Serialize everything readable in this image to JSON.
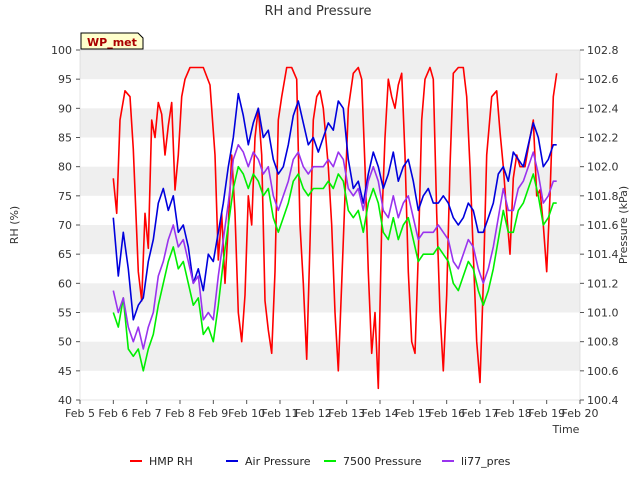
{
  "chart_data": {
    "type": "line",
    "title": "RH and Pressure",
    "badge": "WP_met",
    "xlabel": "Time",
    "ylabel": "RH (%)",
    "y2label": "Pressure (kPa)",
    "x_ticks": [
      5,
      6,
      7,
      8,
      9,
      10,
      11,
      12,
      13,
      14,
      15,
      16,
      17,
      18,
      19,
      20
    ],
    "x_tick_labels": [
      "Feb 5",
      "Feb 6",
      "Feb 7",
      "Feb 8",
      "Feb 9",
      "Feb 10",
      "Feb 11",
      "Feb 12",
      "Feb 13",
      "Feb 14",
      "Feb 15",
      "Feb 16",
      "Feb 17",
      "Feb 18",
      "Feb 19",
      "Feb 20"
    ],
    "xlim": [
      5,
      20
    ],
    "ylim": [
      40,
      100
    ],
    "y_ticks": [
      40,
      45,
      50,
      55,
      60,
      65,
      70,
      75,
      80,
      85,
      90,
      95,
      100
    ],
    "y2lim": [
      100.4,
      102.8
    ],
    "y2_ticks": [
      100.4,
      100.6,
      100.8,
      101.0,
      101.2,
      101.4,
      101.6,
      101.8,
      102.0,
      102.2,
      102.4,
      102.6,
      102.8
    ],
    "y2_tick_labels": [
      "100.4",
      "100.6",
      "100.8",
      "101.0",
      "101.2",
      "101.4",
      "101.6",
      "101.8",
      "102.0",
      "102.2",
      "102.4",
      "102.6",
      "102.8"
    ],
    "series": [
      {
        "name": "HMP RH",
        "color": "#ff0000",
        "axis": "left",
        "x": [
          6.0,
          6.1,
          6.2,
          6.35,
          6.5,
          6.6,
          6.75,
          6.85,
          6.95,
          7.05,
          7.15,
          7.25,
          7.35,
          7.45,
          7.55,
          7.65,
          7.75,
          7.85,
          7.95,
          8.05,
          8.15,
          8.3,
          8.5,
          8.7,
          8.9,
          9.05,
          9.15,
          9.25,
          9.35,
          9.45,
          9.55,
          9.65,
          9.75,
          9.85,
          9.95,
          10.05,
          10.15,
          10.25,
          10.35,
          10.45,
          10.55,
          10.65,
          10.75,
          10.85,
          10.95,
          11.05,
          11.2,
          11.35,
          11.5,
          11.6,
          11.7,
          11.8,
          11.9,
          12.0,
          12.1,
          12.2,
          12.3,
          12.45,
          12.55,
          12.65,
          12.75,
          12.85,
          12.95,
          13.05,
          13.2,
          13.35,
          13.45,
          13.55,
          13.65,
          13.75,
          13.85,
          13.95,
          14.05,
          14.15,
          14.25,
          14.35,
          14.45,
          14.55,
          14.65,
          14.75,
          14.85,
          14.95,
          15.05,
          15.15,
          15.25,
          15.35,
          15.5,
          15.6,
          15.7,
          15.8,
          15.9,
          16.0,
          16.1,
          16.2,
          16.35,
          16.5,
          16.6,
          16.7,
          16.8,
          16.9,
          17.0,
          17.1,
          17.2,
          17.35,
          17.5,
          17.6,
          17.7,
          17.8,
          17.9,
          18.0,
          18.1,
          18.2,
          18.35,
          18.5,
          18.6,
          18.7,
          18.8,
          18.9,
          19.0,
          19.1,
          19.2,
          19.3
        ],
        "y": [
          78,
          72,
          88,
          93,
          92,
          83,
          62,
          57,
          72,
          66,
          88,
          85,
          91,
          89,
          82,
          87,
          91,
          76,
          82,
          92,
          95,
          97,
          97,
          97,
          94,
          82,
          64,
          72,
          60,
          70,
          82,
          72,
          55,
          50,
          58,
          75,
          70,
          85,
          90,
          82,
          57,
          52,
          48,
          62,
          88,
          92,
          97,
          97,
          95,
          70,
          60,
          47,
          67,
          88,
          92,
          93,
          90,
          80,
          70,
          55,
          45,
          60,
          75,
          90,
          96,
          97,
          95,
          80,
          62,
          48,
          55,
          42,
          70,
          85,
          95,
          92,
          90,
          94,
          96,
          82,
          62,
          50,
          48,
          65,
          88,
          95,
          97,
          95,
          72,
          55,
          45,
          58,
          80,
          96,
          97,
          97,
          92,
          80,
          65,
          50,
          43,
          60,
          82,
          92,
          93,
          86,
          80,
          72,
          65,
          78,
          82,
          80,
          80,
          85,
          88,
          75,
          76,
          70,
          62,
          75,
          92,
          96
        ]
      },
      {
        "name": "Air Pressure",
        "color": "#0000dd",
        "axis": "right",
        "x": [
          6.0,
          6.15,
          6.3,
          6.45,
          6.6,
          6.75,
          6.9,
          7.05,
          7.2,
          7.35,
          7.5,
          7.65,
          7.8,
          7.95,
          8.1,
          8.25,
          8.4,
          8.55,
          8.7,
          8.85,
          9.0,
          9.15,
          9.3,
          9.45,
          9.6,
          9.75,
          9.9,
          10.05,
          10.2,
          10.35,
          10.5,
          10.65,
          10.8,
          10.95,
          11.1,
          11.25,
          11.4,
          11.55,
          11.7,
          11.85,
          12.0,
          12.15,
          12.3,
          12.45,
          12.6,
          12.75,
          12.9,
          13.05,
          13.2,
          13.35,
          13.5,
          13.65,
          13.8,
          13.95,
          14.1,
          14.25,
          14.4,
          14.55,
          14.7,
          14.85,
          15.0,
          15.15,
          15.3,
          15.45,
          15.6,
          15.75,
          15.9,
          16.05,
          16.2,
          16.35,
          16.5,
          16.65,
          16.8,
          16.95,
          17.1,
          17.25,
          17.4,
          17.55,
          17.7,
          17.85,
          18.0,
          18.15,
          18.3,
          18.45,
          18.6,
          18.75,
          18.9,
          19.05,
          19.2,
          19.3
        ],
        "y": [
          101.65,
          101.25,
          101.55,
          101.3,
          100.95,
          101.05,
          101.1,
          101.35,
          101.5,
          101.75,
          101.85,
          101.7,
          101.8,
          101.55,
          101.6,
          101.45,
          101.2,
          101.3,
          101.15,
          101.4,
          101.35,
          101.55,
          101.75,
          102.0,
          102.2,
          102.5,
          102.35,
          102.15,
          102.3,
          102.4,
          102.2,
          102.25,
          102.05,
          101.95,
          102.0,
          102.15,
          102.35,
          102.45,
          102.3,
          102.15,
          102.2,
          102.1,
          102.2,
          102.3,
          102.25,
          102.45,
          102.4,
          102.05,
          101.85,
          101.9,
          101.75,
          101.95,
          102.1,
          102.0,
          101.85,
          101.95,
          102.1,
          101.9,
          102.0,
          102.05,
          101.9,
          101.7,
          101.8,
          101.85,
          101.75,
          101.75,
          101.8,
          101.75,
          101.65,
          101.6,
          101.65,
          101.75,
          101.7,
          101.55,
          101.55,
          101.65,
          101.75,
          101.95,
          102.0,
          101.9,
          102.1,
          102.05,
          102.0,
          102.15,
          102.3,
          102.2,
          102.0,
          102.05,
          102.15,
          102.15
        ]
      },
      {
        "name": "7500 Pressure",
        "color": "#00ee00",
        "axis": "right",
        "x": [
          6.0,
          6.15,
          6.3,
          6.45,
          6.6,
          6.75,
          6.9,
          7.05,
          7.2,
          7.35,
          7.5,
          7.65,
          7.8,
          7.95,
          8.1,
          8.25,
          8.4,
          8.55,
          8.7,
          8.85,
          9.0,
          9.15,
          9.3,
          9.45,
          9.6,
          9.75,
          9.9,
          10.05,
          10.2,
          10.35,
          10.5,
          10.65,
          10.8,
          10.95,
          11.1,
          11.25,
          11.4,
          11.55,
          11.7,
          11.85,
          12.0,
          12.15,
          12.3,
          12.45,
          12.6,
          12.75,
          12.9,
          13.05,
          13.2,
          13.35,
          13.5,
          13.65,
          13.8,
          13.95,
          14.1,
          14.25,
          14.4,
          14.55,
          14.7,
          14.85,
          15.0,
          15.15,
          15.3,
          15.45,
          15.6,
          15.75,
          15.9,
          16.05,
          16.2,
          16.35,
          16.5,
          16.65,
          16.8,
          16.95,
          17.1,
          17.25,
          17.4,
          17.55,
          17.7,
          17.85,
          18.0,
          18.15,
          18.3,
          18.45,
          18.6,
          18.75,
          18.9,
          19.05,
          19.2,
          19.3
        ],
        "y": [
          101.0,
          100.9,
          101.1,
          100.75,
          100.7,
          100.75,
          100.6,
          100.75,
          100.85,
          101.05,
          101.2,
          101.35,
          101.45,
          101.3,
          101.35,
          101.2,
          101.05,
          101.1,
          100.85,
          100.9,
          100.8,
          101.05,
          101.35,
          101.6,
          101.85,
          102.0,
          101.95,
          101.85,
          101.95,
          101.9,
          101.8,
          101.85,
          101.65,
          101.55,
          101.65,
          101.75,
          101.9,
          101.95,
          101.85,
          101.8,
          101.85,
          101.85,
          101.85,
          101.9,
          101.85,
          101.95,
          101.9,
          101.7,
          101.65,
          101.7,
          101.55,
          101.75,
          101.85,
          101.75,
          101.55,
          101.5,
          101.65,
          101.5,
          101.6,
          101.65,
          101.5,
          101.35,
          101.4,
          101.4,
          101.4,
          101.45,
          101.4,
          101.35,
          101.2,
          101.15,
          101.25,
          101.35,
          101.3,
          101.15,
          101.05,
          101.15,
          101.3,
          101.5,
          101.7,
          101.55,
          101.55,
          101.7,
          101.75,
          101.85,
          101.95,
          101.8,
          101.6,
          101.65,
          101.75,
          101.75
        ]
      },
      {
        "name": "li77_pres",
        "color": "#9933ee",
        "axis": "right",
        "x": [
          6.0,
          6.15,
          6.3,
          6.45,
          6.6,
          6.75,
          6.9,
          7.05,
          7.2,
          7.35,
          7.5,
          7.65,
          7.8,
          7.95,
          8.1,
          8.25,
          8.4,
          8.55,
          8.7,
          8.85,
          9.0,
          9.15,
          9.3,
          9.45,
          9.6,
          9.75,
          9.9,
          10.05,
          10.2,
          10.35,
          10.5,
          10.65,
          10.8,
          10.95,
          11.1,
          11.25,
          11.4,
          11.55,
          11.7,
          11.85,
          12.0,
          12.15,
          12.3,
          12.45,
          12.6,
          12.75,
          12.9,
          13.05,
          13.2,
          13.35,
          13.5,
          13.65,
          13.8,
          13.95,
          14.1,
          14.25,
          14.4,
          14.55,
          14.7,
          14.85,
          15.0,
          15.15,
          15.3,
          15.45,
          15.6,
          15.75,
          15.9,
          16.05,
          16.2,
          16.35,
          16.5,
          16.65,
          16.8,
          16.95,
          17.1,
          17.25,
          17.4,
          17.55,
          17.7,
          17.85,
          18.0,
          18.15,
          18.3,
          18.45,
          18.6,
          18.75,
          18.9,
          19.05,
          19.2,
          19.3
        ],
        "y": [
          101.15,
          101.0,
          101.1,
          100.9,
          100.8,
          100.9,
          100.75,
          100.9,
          101.0,
          101.25,
          101.35,
          101.5,
          101.6,
          101.45,
          101.5,
          101.35,
          101.2,
          101.25,
          100.95,
          101.0,
          100.95,
          101.25,
          101.5,
          101.75,
          102.05,
          102.15,
          102.1,
          102.0,
          102.1,
          102.05,
          101.95,
          102.0,
          101.8,
          101.7,
          101.8,
          101.9,
          102.05,
          102.1,
          102.0,
          101.95,
          102.0,
          102.0,
          102.0,
          102.05,
          102.0,
          102.1,
          102.05,
          101.85,
          101.8,
          101.85,
          101.7,
          101.9,
          102.0,
          101.9,
          101.7,
          101.65,
          101.8,
          101.65,
          101.75,
          101.8,
          101.65,
          101.5,
          101.55,
          101.55,
          101.55,
          101.6,
          101.55,
          101.5,
          101.35,
          101.3,
          101.4,
          101.5,
          101.45,
          101.3,
          101.2,
          101.3,
          101.45,
          101.65,
          101.85,
          101.7,
          101.7,
          101.85,
          101.9,
          102.0,
          102.1,
          101.95,
          101.75,
          101.8,
          101.9,
          101.9
        ]
      }
    ],
    "legend_position": "bottom-center",
    "grid": true
  }
}
